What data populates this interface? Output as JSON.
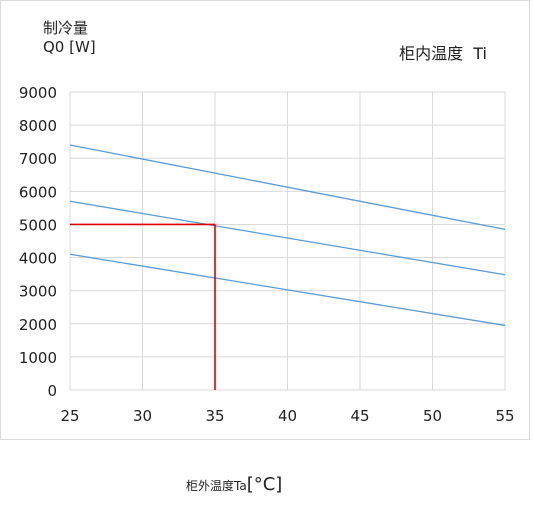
{
  "chart_data": {
    "type": "line",
    "ylabel_lines": [
      "制冷量",
      "Q0  [W]"
    ],
    "legend_title": "柜内温度  Ti",
    "xlabel_main": "柜外温度Ta",
    "xlabel_unit": "[°C]",
    "xlim": [
      25,
      55
    ],
    "ylim": [
      0,
      9000
    ],
    "xticks": [
      25,
      30,
      35,
      40,
      45,
      50,
      55
    ],
    "yticks": [
      0,
      1000,
      2000,
      3000,
      4000,
      5000,
      6000,
      7000,
      8000,
      9000
    ],
    "grid": true,
    "series": [
      {
        "color": "#5b9bd5",
        "x": [
          25,
          55
        ],
        "values": [
          7400,
          4850
        ]
      },
      {
        "color": "#5b9bd5",
        "x": [
          25,
          55
        ],
        "values": [
          5700,
          3480
        ]
      },
      {
        "color": "#5b9bd5",
        "x": [
          25,
          55
        ],
        "values": [
          4100,
          1950
        ]
      }
    ],
    "reference_lines": {
      "color": "#e00000",
      "x": 35,
      "y": 5000
    }
  }
}
